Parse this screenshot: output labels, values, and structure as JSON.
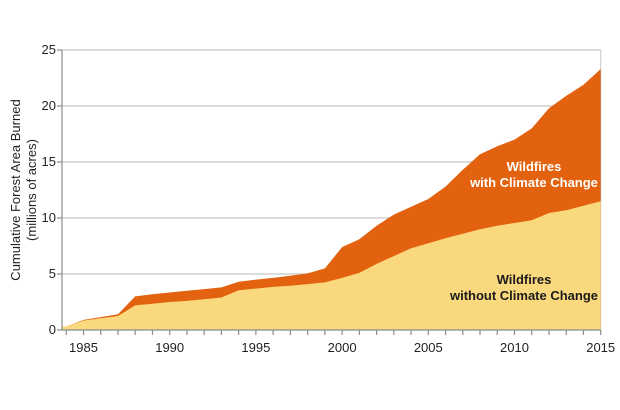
{
  "window": {
    "background": "#ffffff"
  },
  "chart_data": {
    "type": "area",
    "title": "",
    "ylabel": "Cumulative Forest Area Burned (millions of acres)",
    "ylabel_line1": "Cumulative Forest Area Burned",
    "ylabel_line2": "(millions of acres)",
    "xlim": [
      1984,
      2015
    ],
    "ylim": [
      0,
      25
    ],
    "y_ticks": [
      0,
      5,
      10,
      15,
      20,
      25
    ],
    "x_tick_labels": [
      "1985",
      "1990",
      "1995",
      "2000",
      "2005",
      "2010",
      "2015"
    ],
    "minor_x_ticks": "yearly 1984-2015",
    "grid": "horizontal light gray lines behind areas",
    "legend_position": "labels drawn inside plot areas",
    "years": [
      1984,
      1985,
      1986,
      1987,
      1988,
      1989,
      1990,
      1991,
      1992,
      1993,
      1994,
      1995,
      1996,
      1997,
      1998,
      1999,
      2000,
      2001,
      2002,
      2003,
      2004,
      2005,
      2006,
      2007,
      2008,
      2009,
      2010,
      2011,
      2012,
      2013,
      2014,
      2015
    ],
    "series": [
      {
        "name": "Wildfires with Climate Change",
        "label_line1": "Wildfires",
        "label_line2": "with Climate Change",
        "color": "#E2620F",
        "label_color": "#FFFFFF",
        "values": [
          0.3,
          0.9,
          1.15,
          1.4,
          3.0,
          3.2,
          3.35,
          3.5,
          3.65,
          3.8,
          4.3,
          4.5,
          4.65,
          4.85,
          5.05,
          5.5,
          7.4,
          8.1,
          9.3,
          10.3,
          11.0,
          11.7,
          12.8,
          14.3,
          15.7,
          16.4,
          17.0,
          18.0,
          19.8,
          20.9,
          21.9,
          23.3
        ]
      },
      {
        "name": "Wildfires without Climate Change",
        "label_line1": "Wildfires",
        "label_line2": "without Climate Change",
        "color": "#FAD87E",
        "label_color": "#1A1A1A",
        "values": [
          0.3,
          0.85,
          1.05,
          1.25,
          2.2,
          2.35,
          2.5,
          2.6,
          2.75,
          2.9,
          3.55,
          3.7,
          3.85,
          3.95,
          4.1,
          4.25,
          4.65,
          5.1,
          5.9,
          6.6,
          7.3,
          7.75,
          8.2,
          8.6,
          9.0,
          9.3,
          9.55,
          9.8,
          10.45,
          10.7,
          11.1,
          11.5
        ]
      }
    ],
    "colors": {
      "gridline": "#C6C6C6",
      "axis": "#8C8C8C",
      "tick_text": "#231F20",
      "background": "#FFFFFF"
    }
  }
}
